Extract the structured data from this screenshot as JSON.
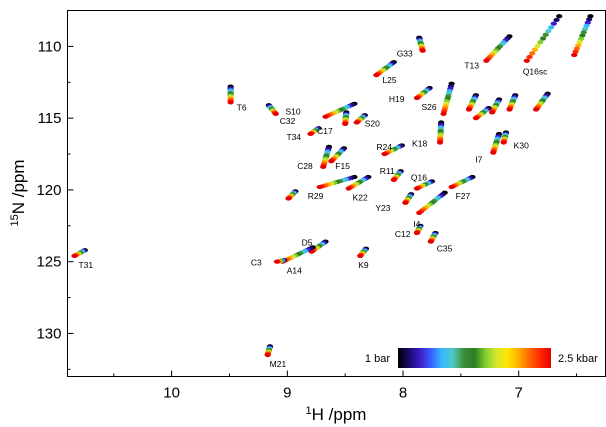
{
  "chart_data": {
    "type": "scatter",
    "title": "",
    "xlabel_prefix": "1",
    "xlabel_main": "H /ppm",
    "ylabel_prefix": "15",
    "ylabel_main": "N /ppm",
    "xlim": [
      10.9,
      6.25
    ],
    "ylim": [
      107.5,
      133
    ],
    "x_axis_reversed": true,
    "y_axis_reversed": true,
    "grid": false,
    "x_ticks": [
      {
        "value": 10,
        "label": "10"
      },
      {
        "value": 9,
        "label": "9"
      },
      {
        "value": 8,
        "label": "8"
      },
      {
        "value": 7,
        "label": "7"
      }
    ],
    "y_ticks": [
      {
        "value": 110,
        "label": "110"
      },
      {
        "value": 115,
        "label": "115"
      },
      {
        "value": 120,
        "label": "120"
      },
      {
        "value": 125,
        "label": "125"
      },
      {
        "value": 130,
        "label": "130"
      }
    ],
    "colorbar": {
      "low_label": "1 bar",
      "high_label": "2.5 kbar",
      "colors": [
        "#000000",
        "#1a0a6e",
        "#3b1cc8",
        "#3a5cff",
        "#35b8ff",
        "#4fc9c4",
        "#3e8f3a",
        "#2e7d22",
        "#7fcf2e",
        "#d7e62e",
        "#ffe600",
        "#ffb000",
        "#ff6a00",
        "#ff2a00",
        "#e60000"
      ]
    },
    "series": [
      {
        "label": "T13",
        "start": [
          7.08,
          109.3
        ],
        "end": [
          7.28,
          111.0
        ]
      },
      {
        "label": "G33",
        "start": [
          7.86,
          109.4
        ],
        "end": [
          7.83,
          110.3
        ]
      },
      {
        "label": "Q16sc",
        "start": [
          6.65,
          107.9
        ],
        "end": [
          6.93,
          111.0
        ]
      },
      {
        "label": "",
        "start": [
          6.38,
          107.9
        ],
        "end": [
          6.52,
          110.6
        ]
      },
      {
        "label": "L25",
        "start": [
          8.08,
          111.1
        ],
        "end": [
          8.23,
          112.0
        ]
      },
      {
        "label": "S26",
        "start": [
          7.58,
          112.6
        ],
        "end": [
          7.65,
          114.7
        ]
      },
      {
        "label": "H19",
        "start": [
          7.77,
          112.9
        ],
        "end": [
          7.88,
          113.6
        ]
      },
      {
        "label": "T6",
        "start": [
          9.49,
          112.8
        ],
        "end": [
          9.49,
          113.9
        ]
      },
      {
        "label": "",
        "start": [
          7.37,
          113.4
        ],
        "end": [
          7.43,
          114.4
        ]
      },
      {
        "label": "",
        "start": [
          7.17,
          113.7
        ],
        "end": [
          7.23,
          114.6
        ]
      },
      {
        "label": "",
        "start": [
          7.03,
          113.4
        ],
        "end": [
          7.08,
          114.4
        ]
      },
      {
        "label": "",
        "start": [
          6.75,
          113.3
        ],
        "end": [
          6.85,
          114.4
        ]
      },
      {
        "label": "C32",
        "start": [
          9.16,
          114.1
        ],
        "end": [
          9.1,
          114.7
        ]
      },
      {
        "label": "",
        "start": [
          7.26,
          114.3
        ],
        "end": [
          7.37,
          115.0
        ]
      },
      {
        "label": "S10",
        "start": [
          8.42,
          114.0
        ],
        "end": [
          8.67,
          114.9
        ]
      },
      {
        "label": "S20",
        "start": [
          8.33,
          114.8
        ],
        "end": [
          8.4,
          115.3
        ]
      },
      {
        "label": "C17",
        "start": [
          8.49,
          114.6
        ],
        "end": [
          8.5,
          115.4
        ]
      },
      {
        "label": "K18",
        "start": [
          7.67,
          115.3
        ],
        "end": [
          7.68,
          116.7
        ]
      },
      {
        "label": "T34",
        "start": [
          8.73,
          115.7
        ],
        "end": [
          8.8,
          116.1
        ]
      },
      {
        "label": "I7",
        "start": [
          7.17,
          116.1
        ],
        "end": [
          7.22,
          117.4
        ]
      },
      {
        "label": "K30",
        "start": [
          7.11,
          116.0
        ],
        "end": [
          7.13,
          116.7
        ]
      },
      {
        "label": "C28",
        "start": [
          8.64,
          117.0
        ],
        "end": [
          8.69,
          118.4
        ]
      },
      {
        "label": "F15",
        "start": [
          8.51,
          117.1
        ],
        "end": [
          8.62,
          118.0
        ]
      },
      {
        "label": "R24",
        "start": [
          8.01,
          116.9
        ],
        "end": [
          8.16,
          117.5
        ]
      },
      {
        "label": "R11",
        "start": [
          8.02,
          118.7
        ],
        "end": [
          8.08,
          119.3
        ]
      },
      {
        "label": "F27",
        "start": [
          7.4,
          119.1
        ],
        "end": [
          7.58,
          119.8
        ]
      },
      {
        "label": "Q16",
        "start": [
          7.75,
          119.4
        ],
        "end": [
          7.88,
          119.9
        ]
      },
      {
        "label": "R29",
        "start": [
          8.42,
          119.1
        ],
        "end": [
          8.72,
          119.8
        ]
      },
      {
        "label": "K22",
        "start": [
          8.3,
          119.1
        ],
        "end": [
          8.47,
          119.9
        ]
      },
      {
        "label": "",
        "start": [
          8.93,
          120.1
        ],
        "end": [
          8.99,
          120.6
        ]
      },
      {
        "label": "I4",
        "start": [
          7.64,
          120.2
        ],
        "end": [
          7.86,
          121.6
        ]
      },
      {
        "label": "Y23",
        "start": [
          7.93,
          120.3
        ],
        "end": [
          7.98,
          120.9
        ]
      },
      {
        "label": "C12",
        "start": [
          7.85,
          122.5
        ],
        "end": [
          7.88,
          123.0
        ]
      },
      {
        "label": "C35",
        "start": [
          7.72,
          123.0
        ],
        "end": [
          7.76,
          123.6
        ]
      },
      {
        "label": "D5",
        "start": [
          8.67,
          123.6
        ],
        "end": [
          8.79,
          124.3
        ]
      },
      {
        "label": "A14",
        "start": [
          8.78,
          124.0
        ],
        "end": [
          9.04,
          125.0
        ]
      },
      {
        "label": "C3",
        "start": [
          9.03,
          124.9
        ],
        "end": [
          9.09,
          125.0
        ]
      },
      {
        "label": "K9",
        "start": [
          8.32,
          124.1
        ],
        "end": [
          8.37,
          124.6
        ]
      },
      {
        "label": "T31",
        "start": [
          10.75,
          124.2
        ],
        "end": [
          10.84,
          124.6
        ]
      },
      {
        "label": "M21",
        "start": [
          9.15,
          130.9
        ],
        "end": [
          9.17,
          131.5
        ]
      }
    ]
  }
}
